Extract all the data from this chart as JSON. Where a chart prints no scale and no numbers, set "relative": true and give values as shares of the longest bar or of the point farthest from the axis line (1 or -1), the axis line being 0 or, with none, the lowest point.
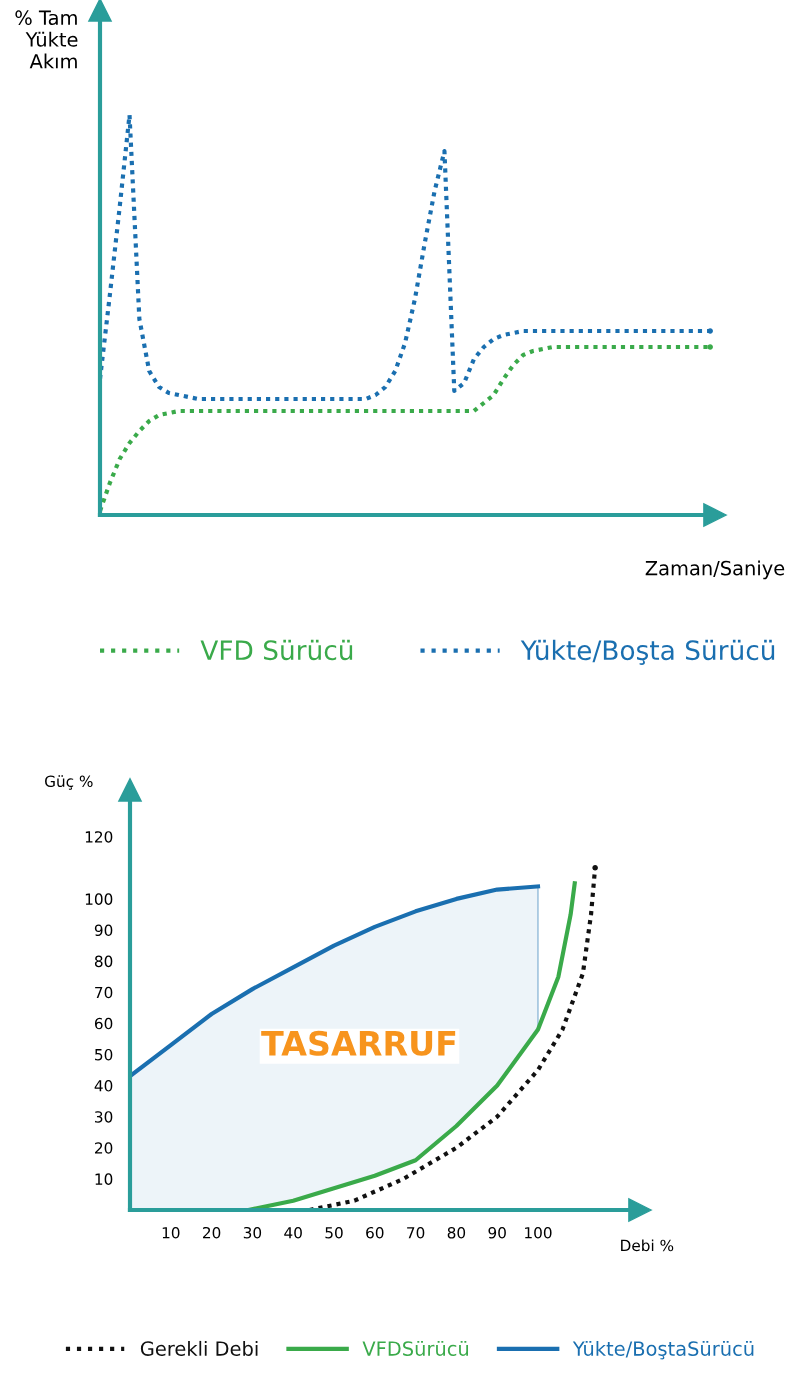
{
  "chart_data": [
    {
      "type": "line",
      "relative": true,
      "ylabel": "% Tam\nYükte\nAkım",
      "xlabel": "Zaman/Saniye",
      "legend": "bottom",
      "grid": false,
      "line_style": "dotted",
      "marker": "none",
      "categories": [
        null,
        null,
        null,
        null,
        null,
        null,
        null,
        null,
        null,
        null,
        null,
        null,
        null,
        null,
        null,
        null,
        null,
        null,
        null,
        null,
        null,
        null,
        null,
        null,
        null,
        null,
        null,
        null,
        null,
        null,
        null,
        null,
        null,
        null,
        null,
        null,
        null,
        null,
        null,
        null,
        null,
        null,
        null,
        null,
        null,
        null,
        null,
        null,
        null,
        null,
        null,
        null,
        null,
        null,
        null,
        null,
        null,
        null,
        null,
        null,
        null,
        null,
        null
      ],
      "series": [
        {
          "name": "VFD Sürücü",
          "color": "#3aaa4a",
          "values": [
            0.01,
            0.08,
            0.14,
            0.18,
            0.21,
            0.235,
            0.25,
            0.255,
            0.26,
            0.26,
            0.26,
            0.26,
            0.26,
            0.26,
            0.26,
            0.26,
            0.26,
            0.26,
            0.26,
            0.26,
            0.26,
            0.26,
            0.26,
            0.26,
            0.26,
            0.26,
            0.26,
            0.26,
            0.26,
            0.26,
            0.26,
            0.26,
            0.26,
            0.26,
            0.26,
            0.26,
            0.26,
            0.26,
            0.26,
            0.28,
            0.3,
            0.34,
            0.375,
            0.4,
            0.41,
            0.415,
            0.42,
            0.42,
            0.42,
            0.42,
            0.42,
            0.42,
            0.42,
            0.42,
            0.42,
            0.42,
            0.42,
            0.42,
            0.42,
            0.42,
            0.42,
            0.42,
            0.42
          ]
        },
        {
          "name": "Yükte/Boşta Sürücü",
          "color": "#1a6fb0",
          "values": [
            0.34,
            0.55,
            0.77,
            1,
            0.49,
            0.36,
            0.32,
            0.305,
            0.3,
            0.295,
            0.29,
            0.29,
            0.29,
            0.29,
            0.29,
            0.29,
            0.29,
            0.29,
            0.29,
            0.29,
            0.29,
            0.29,
            0.29,
            0.29,
            0.29,
            0.29,
            0.29,
            0.29,
            0.3,
            0.32,
            0.36,
            0.43,
            0.54,
            0.68,
            0.81,
            0.91,
            0.31,
            0.33,
            0.39,
            0.42,
            0.44,
            0.45,
            0.455,
            0.46,
            0.46,
            0.46,
            0.46,
            0.46,
            0.46,
            0.46,
            0.46,
            0.46,
            0.46,
            0.46,
            0.46,
            0.46,
            0.46,
            0.46,
            0.46,
            0.46,
            0.46,
            0.46,
            0.46
          ]
        }
      ]
    },
    {
      "type": "line",
      "ylabel": "Güç %",
      "xlabel": "Debi %",
      "legend": "bottom",
      "grid": false,
      "marker": "none",
      "xlim": [
        0,
        125
      ],
      "ylim": [
        0,
        135
      ],
      "xticks": [
        10,
        20,
        30,
        40,
        50,
        60,
        70,
        80,
        90,
        100
      ],
      "yticks": [
        10,
        20,
        30,
        40,
        50,
        60,
        70,
        80,
        90,
        100,
        120
      ],
      "annotations": [
        "TASARRUF"
      ],
      "series": [
        {
          "name": "Gerekli Debi",
          "color": "#111111",
          "line_style": "dotted",
          "x": [
            44,
            55,
            67,
            80,
            90,
            100,
            106,
            111,
            113,
            114
          ],
          "values": [
            0,
            3,
            10,
            20,
            30,
            45,
            58,
            76,
            95,
            110
          ]
        },
        {
          "name": "VFDSürücü",
          "color": "#3aaa4a",
          "line_style": "solid",
          "x": [
            29,
            40,
            50,
            60,
            70,
            80,
            90,
            100,
            105,
            108,
            109
          ],
          "values": [
            0,
            3,
            7,
            11,
            16,
            27,
            40,
            58,
            75,
            95,
            105
          ]
        },
        {
          "name": "Yükte/BoştaSürücü",
          "color": "#1a6fb0",
          "line_style": "solid",
          "x": [
            0,
            10,
            20,
            30,
            40,
            50,
            60,
            70,
            80,
            90,
            100
          ],
          "values": [
            43,
            53,
            63,
            71,
            78,
            85,
            91,
            96,
            100,
            103,
            104
          ],
          "lower": [
            0,
            0,
            0,
            0,
            3,
            7,
            11,
            16,
            27,
            40,
            58
          ],
          "upper": [
            43,
            53,
            63,
            71,
            78,
            85,
            91,
            96,
            100,
            103,
            104
          ]
        }
      ]
    }
  ]
}
